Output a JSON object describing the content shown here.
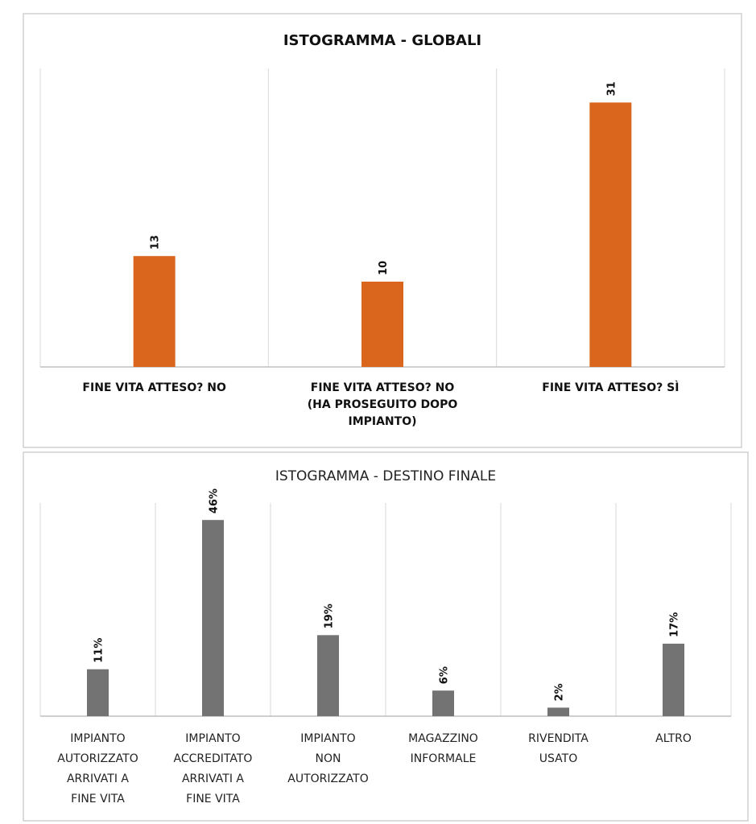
{
  "chart_data": [
    {
      "type": "bar",
      "title": "ISTOGRAMMA - GLOBALI",
      "categories": [
        [
          "FINE VITA ATTESO? NO"
        ],
        [
          "FINE VITA ATTESO? NO",
          "(HA PROSEGUITO DOPO",
          "IMPIANTO)"
        ],
        [
          "FINE VITA ATTESO? SÌ"
        ]
      ],
      "values": [
        13,
        10,
        31
      ],
      "data_labels": [
        "13",
        "10",
        "31"
      ],
      "ylim": [
        0,
        35
      ],
      "bar_color": "#D9661C",
      "xlabel": "",
      "ylabel": "",
      "grid": "vertical category separators"
    },
    {
      "type": "bar",
      "title": "ISTOGRAMMA - DESTINO FINALE",
      "categories": [
        [
          "IMPIANTO",
          "AUTORIZZATO",
          "ARRIVATI A",
          "FINE VITA"
        ],
        [
          "IMPIANTO",
          "ACCREDITATO",
          "ARRIVATI A",
          "FINE VITA"
        ],
        [
          "IMPIANTO",
          "NON",
          "AUTORIZZATO"
        ],
        [
          "MAGAZZINO",
          "INFORMALE"
        ],
        [
          "RIVENDITA",
          "USATO"
        ],
        [
          "ALTRO"
        ]
      ],
      "values": [
        11,
        46,
        19,
        6,
        2,
        17
      ],
      "data_labels": [
        "11%",
        "46%",
        "19%",
        "6%",
        "2%",
        "17%"
      ],
      "ylim": [
        0,
        50
      ],
      "bar_color": "#737373",
      "xlabel": "",
      "ylabel": "",
      "grid": "vertical category separators"
    }
  ]
}
